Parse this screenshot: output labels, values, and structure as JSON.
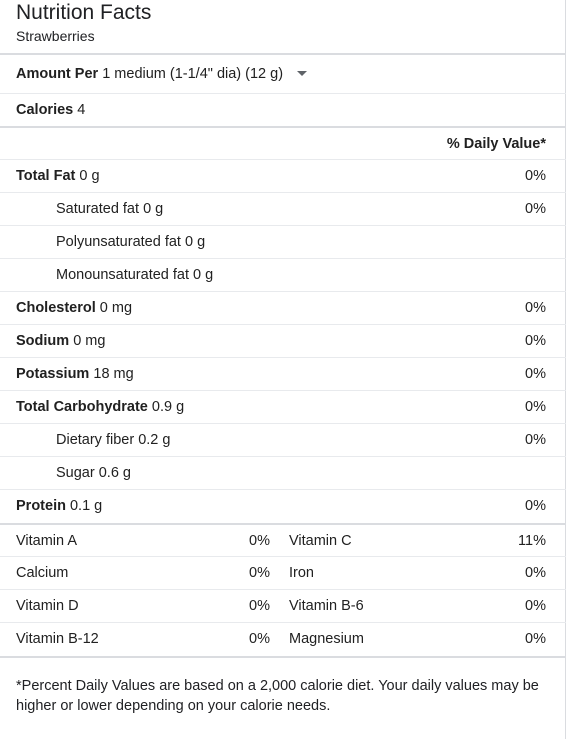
{
  "header": {
    "title": "Nutrition Facts",
    "food": "Strawberries"
  },
  "amount": {
    "label": "Amount Per",
    "serving": "1 medium (1-1/4\" dia) (12 g)"
  },
  "calories": {
    "label": "Calories",
    "value": "4"
  },
  "dv_header": "% Daily Value*",
  "nutrients": [
    {
      "label": "Total Fat",
      "value": "0 g",
      "dv": "0%",
      "bold": true,
      "indent": false
    },
    {
      "label": "Saturated fat",
      "value": "0 g",
      "dv": "0%",
      "bold": false,
      "indent": true
    },
    {
      "label": "Polyunsaturated fat",
      "value": "0 g",
      "dv": "",
      "bold": false,
      "indent": true
    },
    {
      "label": "Monounsaturated fat",
      "value": "0 g",
      "dv": "",
      "bold": false,
      "indent": true
    },
    {
      "label": "Cholesterol",
      "value": "0 mg",
      "dv": "0%",
      "bold": true,
      "indent": false
    },
    {
      "label": "Sodium",
      "value": "0 mg",
      "dv": "0%",
      "bold": true,
      "indent": false
    },
    {
      "label": "Potassium",
      "value": "18 mg",
      "dv": "0%",
      "bold": true,
      "indent": false
    },
    {
      "label": "Total Carbohydrate",
      "value": "0.9 g",
      "dv": "0%",
      "bold": true,
      "indent": false
    },
    {
      "label": "Dietary fiber",
      "value": "0.2 g",
      "dv": "0%",
      "bold": false,
      "indent": true
    },
    {
      "label": "Sugar",
      "value": "0.6 g",
      "dv": "",
      "bold": false,
      "indent": true
    },
    {
      "label": "Protein",
      "value": "0.1 g",
      "dv": "0%",
      "bold": true,
      "indent": false
    }
  ],
  "vitamins": [
    {
      "name1": "Vitamin A",
      "dv1": "0%",
      "name2": "Vitamin C",
      "dv2": "11%"
    },
    {
      "name1": "Calcium",
      "dv1": "0%",
      "name2": "Iron",
      "dv2": "0%"
    },
    {
      "name1": "Vitamin D",
      "dv1": "0%",
      "name2": "Vitamin B-6",
      "dv2": "0%"
    },
    {
      "name1": "Vitamin B-12",
      "dv1": "0%",
      "name2": "Magnesium",
      "dv2": "0%"
    }
  ],
  "footnote": "*Percent Daily Values are based on a 2,000 calorie diet. Your daily values may be higher or lower depending on your calorie needs."
}
